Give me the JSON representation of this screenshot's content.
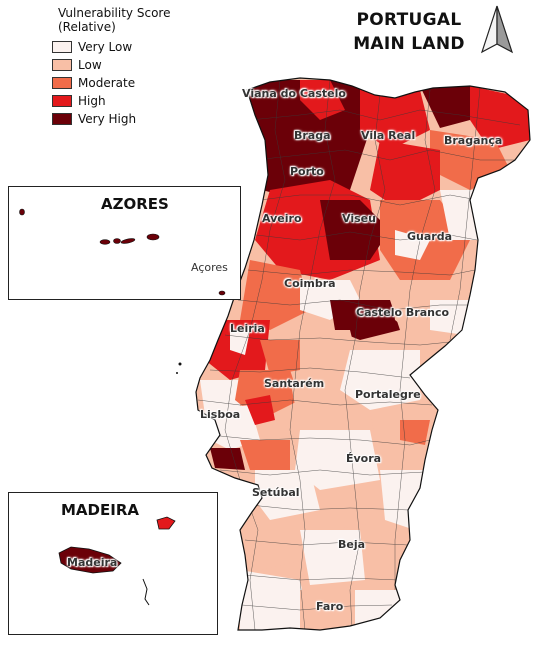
{
  "legend": {
    "title": "Vulnerability Score (Relative)",
    "items": [
      {
        "label": "Very Low",
        "color": "#fbf2ef"
      },
      {
        "label": "Low",
        "color": "#f8bfa6"
      },
      {
        "label": "Moderate",
        "color": "#f16c4a"
      },
      {
        "label": "High",
        "color": "#e3191c"
      },
      {
        "label": "Very High",
        "color": "#6b0008"
      }
    ]
  },
  "title": {
    "line1": "PORTUGAL",
    "line2": "MAIN LAND"
  },
  "insets": {
    "azores": {
      "title": "AZORES",
      "label": "Açores"
    },
    "madeira": {
      "title": "MADEIRA",
      "label": "Madeira"
    }
  },
  "districts": {
    "viana": "Viana do Castelo",
    "braga": "Braga",
    "vila_real": "Vila Real",
    "braganca": "Bragança",
    "porto": "Porto",
    "aveiro": "Aveiro",
    "viseu": "Viseu",
    "guarda": "Guarda",
    "coimbra": "Coimbra",
    "castelo_branco": "Castelo Branco",
    "leiria": "Leiria",
    "santarem": "Santarém",
    "portalegre": "Portalegre",
    "lisboa": "Lisboa",
    "evora": "Évora",
    "setubal": "Setúbal",
    "beja": "Beja",
    "faro": "Faro"
  }
}
